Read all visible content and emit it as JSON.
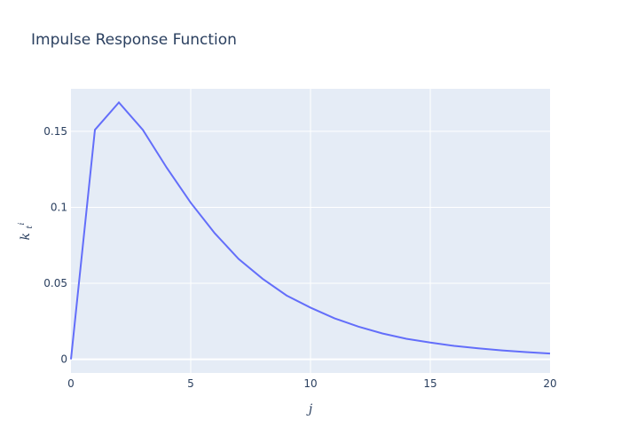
{
  "chart_data": {
    "type": "line",
    "title": "Impulse Response Function",
    "xlabel": "j",
    "ylabel": "k",
    "ylabel_superscript": "i",
    "ylabel_subscript": "t",
    "x": [
      0,
      1,
      2,
      3,
      4,
      5,
      6,
      7,
      8,
      9,
      10,
      11,
      12,
      13,
      14,
      15,
      16,
      17,
      18,
      19,
      20
    ],
    "series": [
      {
        "values": [
          0.0,
          0.151,
          0.169,
          0.151,
          0.126,
          0.103,
          0.083,
          0.066,
          0.053,
          0.042,
          0.034,
          0.027,
          0.0215,
          0.017,
          0.0135,
          0.011,
          0.0088,
          0.0072,
          0.0058,
          0.0047,
          0.0038
        ]
      }
    ],
    "xlim": [
      0,
      20
    ],
    "ylim": [
      -0.009,
      0.178
    ],
    "xticks": [
      0,
      5,
      10,
      15,
      20
    ],
    "xtick_labels": [
      "0",
      "5",
      "10",
      "15",
      "20"
    ],
    "yticks": [
      0,
      0.05,
      0.1,
      0.15
    ],
    "ytick_labels": [
      "0",
      "0.05",
      "0.1",
      "0.15"
    ],
    "grid": true,
    "colors": {
      "plot_background": "#e5ecf6",
      "line": "#636efa",
      "text": "#2a3f5f"
    }
  }
}
